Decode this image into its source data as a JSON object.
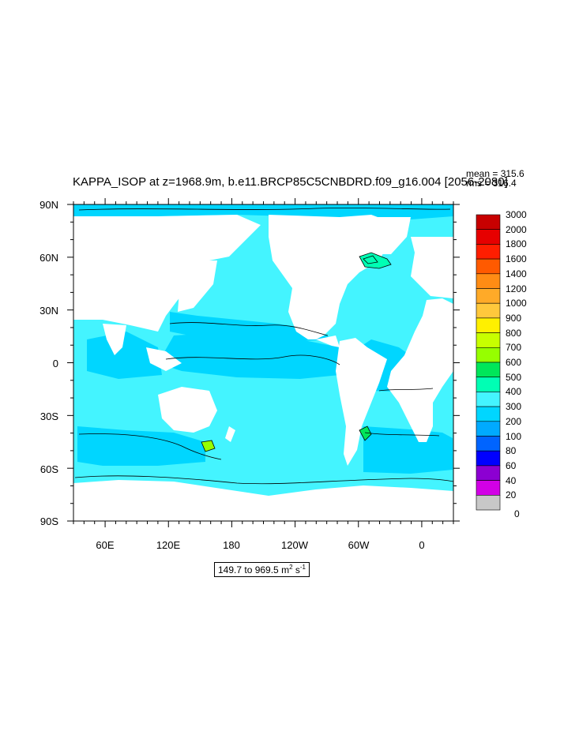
{
  "figure": {
    "title": "KAPPA_ISOP at z=1968.9m, b.e11.BRCP85C5CNBDRD.f09_g16.004 [2056-2080]",
    "mean_text": "mean = 315.6",
    "rms_text": "rms = 316.4",
    "range_text": "149.7 to 969.5 m",
    "range_unit_m_exp": "2",
    "range_unit_s": " s",
    "range_unit_s_exp": "-1"
  },
  "map": {
    "projection": "cylindrical equidistant",
    "lon_range": [
      30,
      390
    ],
    "lat_range": [
      -90,
      90
    ],
    "land_color": "#ffffff",
    "ocean_base_color": "#44f4ff",
    "ocean_low_color": "#00d6ff",
    "high_patch_colors": [
      "#00ffb4",
      "#00e65a",
      "#96ff00",
      "#00ffb4"
    ],
    "lat_labels": [
      "90N",
      "60N",
      "30N",
      "0",
      "30S",
      "60S",
      "90S"
    ],
    "lon_labels": [
      "60E",
      "120E",
      "180",
      "120W",
      "60W",
      "0"
    ]
  },
  "colorbar": {
    "levels": [
      "3000",
      "2000",
      "1800",
      "1600",
      "1400",
      "1200",
      "1000",
      "900",
      "800",
      "700",
      "600",
      "500",
      "400",
      "300",
      "200",
      "100",
      "80",
      "60",
      "40",
      "20",
      "0"
    ],
    "colors": [
      "#c80000",
      "#e60000",
      "#ff1e00",
      "#ff5a00",
      "#ff8c14",
      "#ffaa28",
      "#ffc83c",
      "#fff000",
      "#c8ff00",
      "#96ff00",
      "#00e65a",
      "#00ffb4",
      "#44f4ff",
      "#00d6ff",
      "#00aaff",
      "#0064ff",
      "#0000ff",
      "#8c00d2",
      "#d200e6",
      "#c8c8c8"
    ]
  }
}
